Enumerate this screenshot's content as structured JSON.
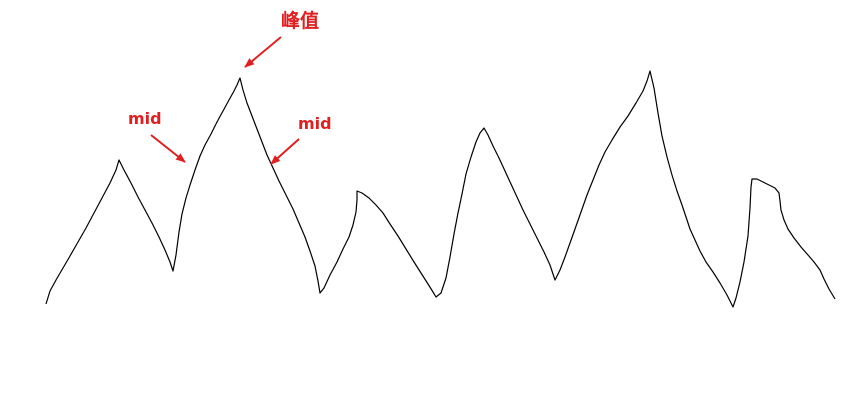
{
  "annotations": {
    "peak_label": "峰值",
    "mid_label_left": "mid",
    "mid_label_right": "mid"
  },
  "colors": {
    "waveform": "#000000",
    "annotation": "#e02020",
    "background": "#ffffff"
  }
}
